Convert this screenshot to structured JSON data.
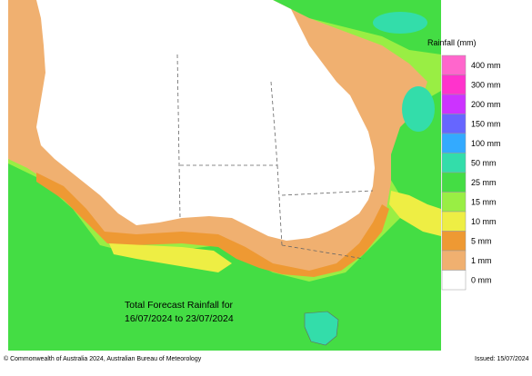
{
  "map": {
    "caption_line1": "Total Forecast Rainfall for",
    "caption_line2": "16/07/2024 to 23/07/2024",
    "background_color": "#ffffff",
    "outline_color": "#666666"
  },
  "legend": {
    "title": "Rainfall (mm)",
    "items": [
      {
        "label": "400 mm",
        "color": "#ff66cc"
      },
      {
        "label": "300 mm",
        "color": "#ff33cc"
      },
      {
        "label": "200 mm",
        "color": "#cc33ff"
      },
      {
        "label": "150 mm",
        "color": "#6666ff"
      },
      {
        "label": "100 mm",
        "color": "#33aaff"
      },
      {
        "label": "50 mm",
        "color": "#33ddaa"
      },
      {
        "label": "25 mm",
        "color": "#44dd44"
      },
      {
        "label": "15 mm",
        "color": "#99ee44"
      },
      {
        "label": "10 mm",
        "color": "#eeee44"
      },
      {
        "label": "5 mm",
        "color": "#ee9933"
      },
      {
        "label": "1 mm",
        "color": "#f0b070"
      },
      {
        "label": "0 mm",
        "color": "#ffffff"
      }
    ]
  },
  "footer": {
    "copyright": "© Commonwealth of Australia 2024, Australian Bureau of Meteorology",
    "issued": "Issued: 15/07/2024"
  }
}
